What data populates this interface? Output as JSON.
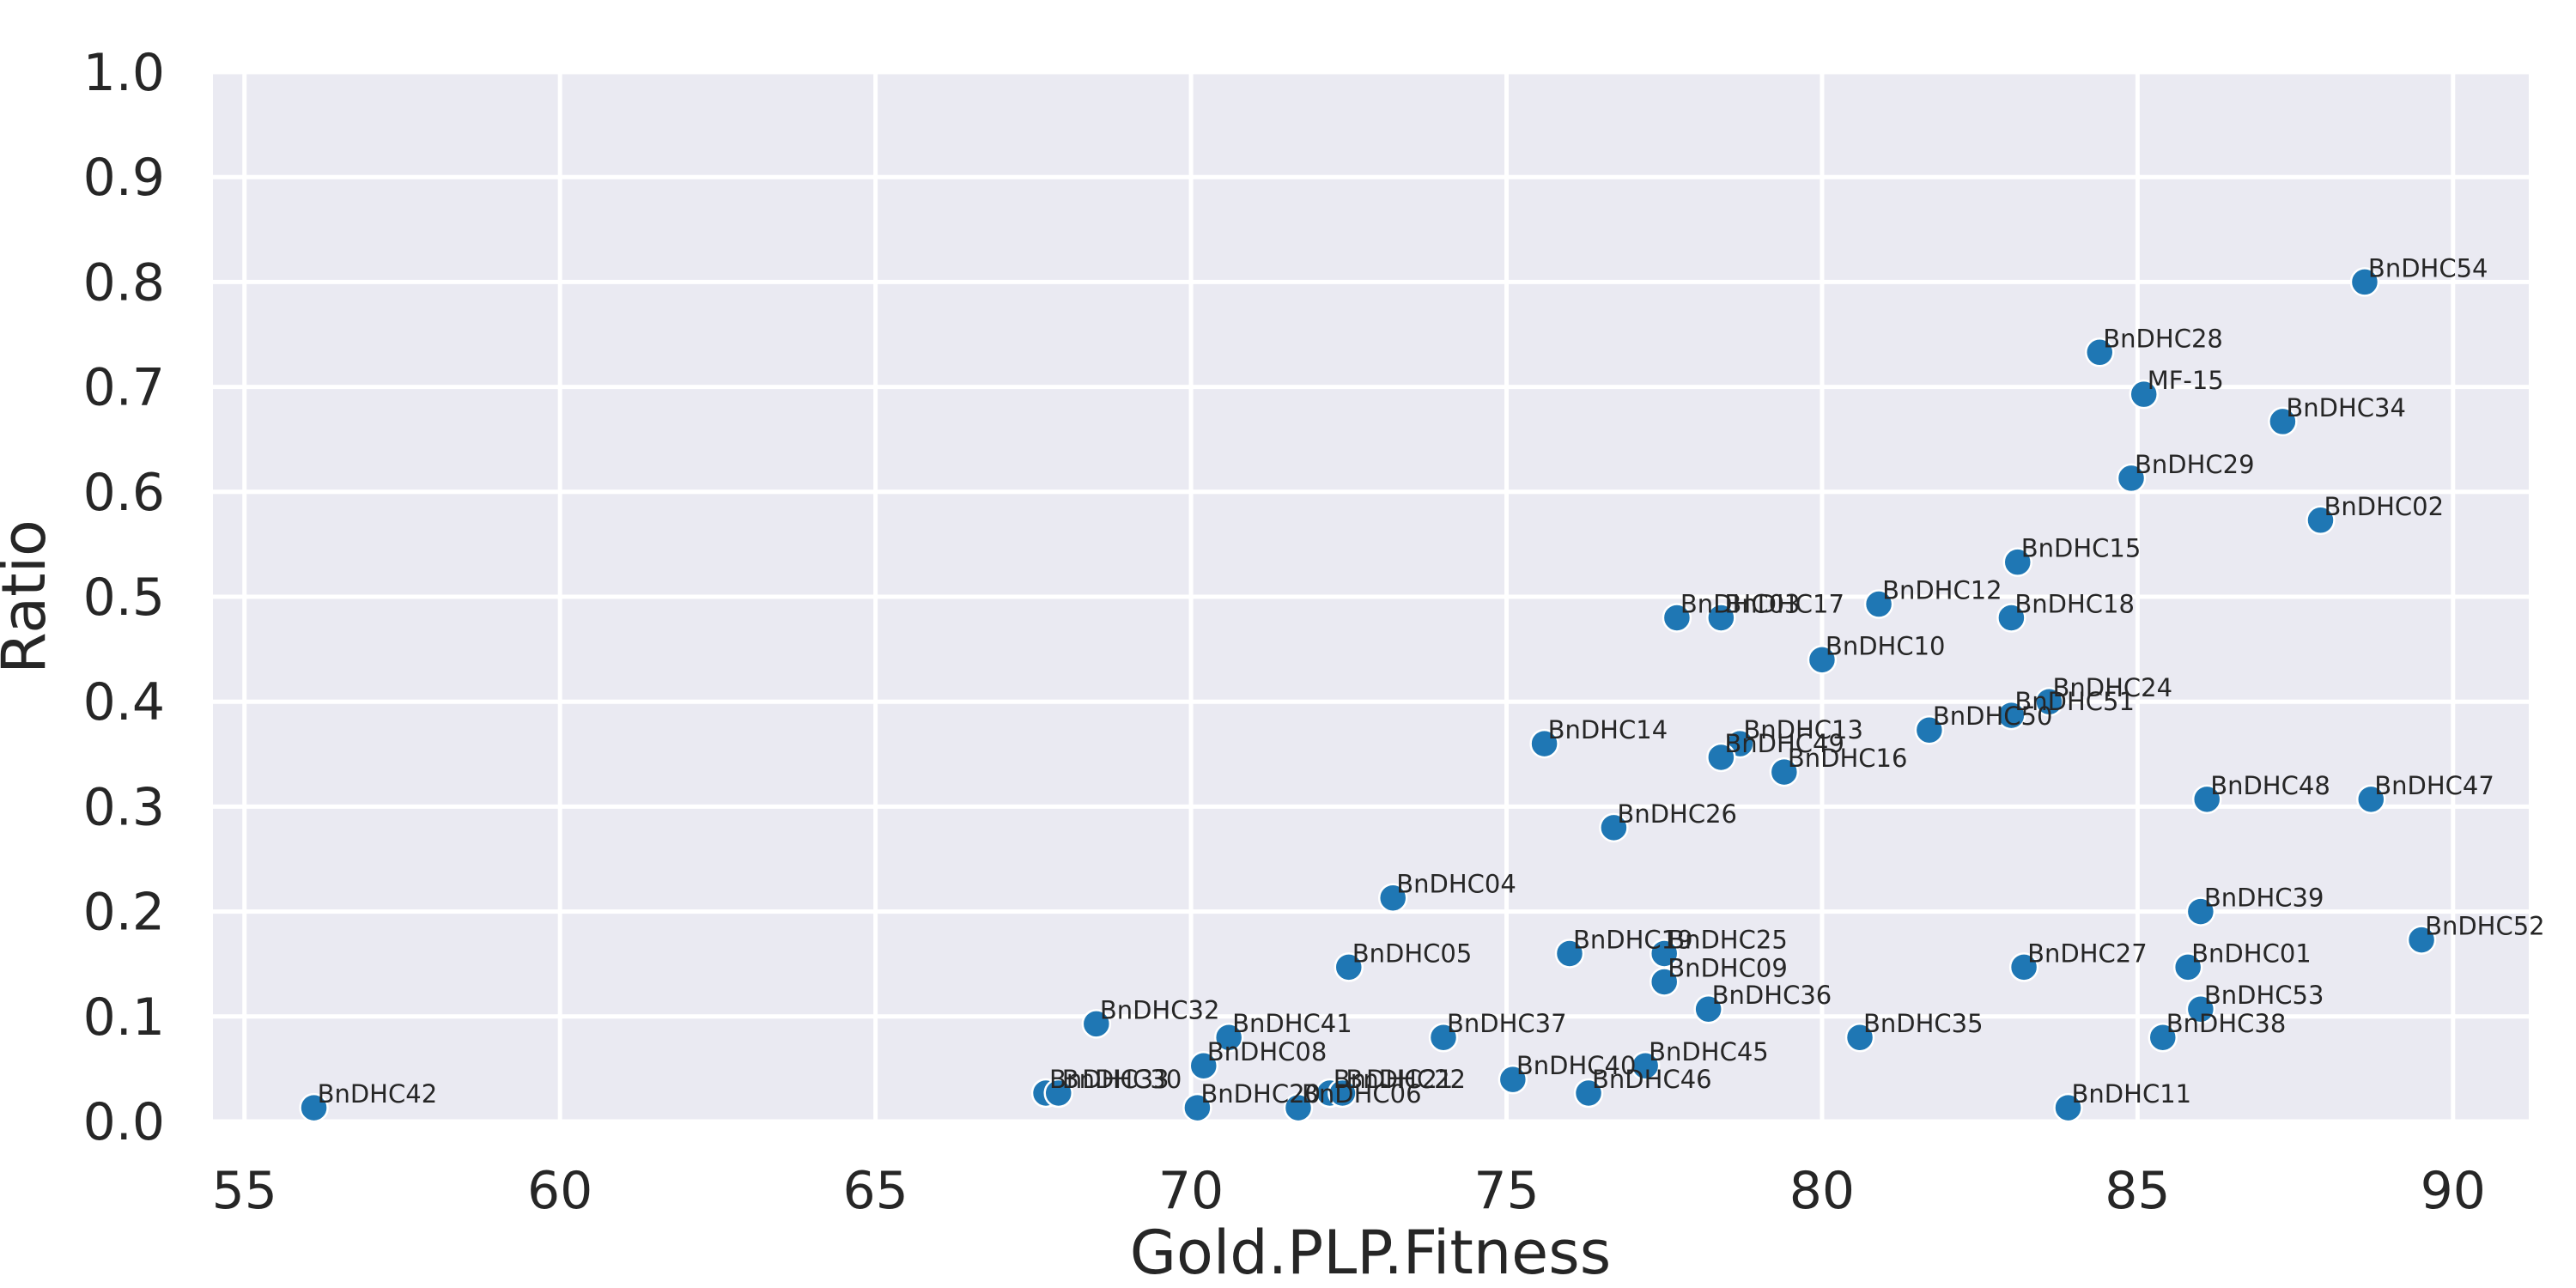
{
  "chart_data": {
    "type": "scatter",
    "xlabel": "Gold.PLP.Fitness",
    "ylabel": "Ratio",
    "xlim": [
      54.5,
      91.2
    ],
    "ylim": [
      0.0,
      1.0
    ],
    "x_ticks": [
      55,
      60,
      65,
      70,
      75,
      80,
      85,
      90
    ],
    "x_tick_labels": [
      "55",
      "60",
      "65",
      "70",
      "75",
      "80",
      "85",
      "90"
    ],
    "y_ticks": [
      0.0,
      0.1,
      0.2,
      0.3,
      0.4,
      0.5,
      0.6,
      0.7,
      0.8,
      0.9,
      1.0
    ],
    "y_tick_labels": [
      "0.0",
      "0.1",
      "0.2",
      "0.3",
      "0.4",
      "0.5",
      "0.6",
      "0.7",
      "0.8",
      "0.9",
      "1.0"
    ],
    "grid": true,
    "background": "#eaeaf2",
    "point_color": "#1f77b4",
    "points": [
      {
        "label": "BnDHC54",
        "x": 88.6,
        "y": 0.8
      },
      {
        "label": "BnDHC28",
        "x": 84.4,
        "y": 0.733
      },
      {
        "label": "MF-15",
        "x": 85.1,
        "y": 0.693
      },
      {
        "label": "BnDHC34",
        "x": 87.3,
        "y": 0.667
      },
      {
        "label": "BnDHC29",
        "x": 84.9,
        "y": 0.613
      },
      {
        "label": "BnDHC02",
        "x": 87.9,
        "y": 0.573
      },
      {
        "label": "BnDHC15",
        "x": 83.1,
        "y": 0.533
      },
      {
        "label": "BnDHC12",
        "x": 80.9,
        "y": 0.493
      },
      {
        "label": "BnDHC18",
        "x": 83.0,
        "y": 0.48
      },
      {
        "label": "BnDHC03",
        "x": 77.7,
        "y": 0.48
      },
      {
        "label": "BnDHC17",
        "x": 78.4,
        "y": 0.48
      },
      {
        "label": "BnDHC10",
        "x": 80.0,
        "y": 0.44
      },
      {
        "label": "BnDHC24",
        "x": 83.6,
        "y": 0.4
      },
      {
        "label": "BnDHC51",
        "x": 83.0,
        "y": 0.387
      },
      {
        "label": "BnDHC50",
        "x": 81.7,
        "y": 0.373
      },
      {
        "label": "BnDHC14",
        "x": 75.6,
        "y": 0.36
      },
      {
        "label": "BnDHC13",
        "x": 78.7,
        "y": 0.36
      },
      {
        "label": "BnDHC49",
        "x": 78.4,
        "y": 0.347
      },
      {
        "label": "BnDHC16",
        "x": 79.4,
        "y": 0.333
      },
      {
        "label": "BnDHC48",
        "x": 86.1,
        "y": 0.307
      },
      {
        "label": "BnDHC47",
        "x": 88.7,
        "y": 0.307
      },
      {
        "label": "BnDHC26",
        "x": 76.7,
        "y": 0.28
      },
      {
        "label": "BnDHC04",
        "x": 73.2,
        "y": 0.213
      },
      {
        "label": "BnDHC39",
        "x": 86.0,
        "y": 0.2
      },
      {
        "label": "BnDHC52",
        "x": 89.5,
        "y": 0.173
      },
      {
        "label": "BnDHC19",
        "x": 76.0,
        "y": 0.16
      },
      {
        "label": "BnDHC25",
        "x": 77.5,
        "y": 0.16
      },
      {
        "label": "BnDHC05",
        "x": 72.5,
        "y": 0.147
      },
      {
        "label": "BnDHC27",
        "x": 83.2,
        "y": 0.147
      },
      {
        "label": "BnDHC01",
        "x": 85.8,
        "y": 0.147
      },
      {
        "label": "BnDHC09",
        "x": 77.5,
        "y": 0.133
      },
      {
        "label": "BnDHC36",
        "x": 78.2,
        "y": 0.107
      },
      {
        "label": "BnDHC53",
        "x": 86.0,
        "y": 0.107
      },
      {
        "label": "BnDHC32",
        "x": 68.5,
        "y": 0.093
      },
      {
        "label": "BnDHC41",
        "x": 70.6,
        "y": 0.08
      },
      {
        "label": "BnDHC37",
        "x": 74.0,
        "y": 0.08
      },
      {
        "label": "BnDHC35",
        "x": 80.6,
        "y": 0.08
      },
      {
        "label": "BnDHC38",
        "x": 85.4,
        "y": 0.08
      },
      {
        "label": "BnDHC08",
        "x": 70.2,
        "y": 0.053
      },
      {
        "label": "BnDHC45",
        "x": 77.2,
        "y": 0.053
      },
      {
        "label": "BnDHC40",
        "x": 75.1,
        "y": 0.04
      },
      {
        "label": "BnDHC33",
        "x": 67.7,
        "y": 0.027
      },
      {
        "label": "BnDHC30",
        "x": 67.9,
        "y": 0.027
      },
      {
        "label": "BnDHC21",
        "x": 72.2,
        "y": 0.027
      },
      {
        "label": "BnDHC22",
        "x": 72.4,
        "y": 0.027
      },
      {
        "label": "BnDHC46",
        "x": 76.3,
        "y": 0.027
      },
      {
        "label": "BnDHC42",
        "x": 56.1,
        "y": 0.013
      },
      {
        "label": "BnDHC20",
        "x": 70.1,
        "y": 0.013
      },
      {
        "label": "BnDHC06",
        "x": 71.7,
        "y": 0.013
      },
      {
        "label": "BnDHC11",
        "x": 83.9,
        "y": 0.013
      }
    ]
  }
}
